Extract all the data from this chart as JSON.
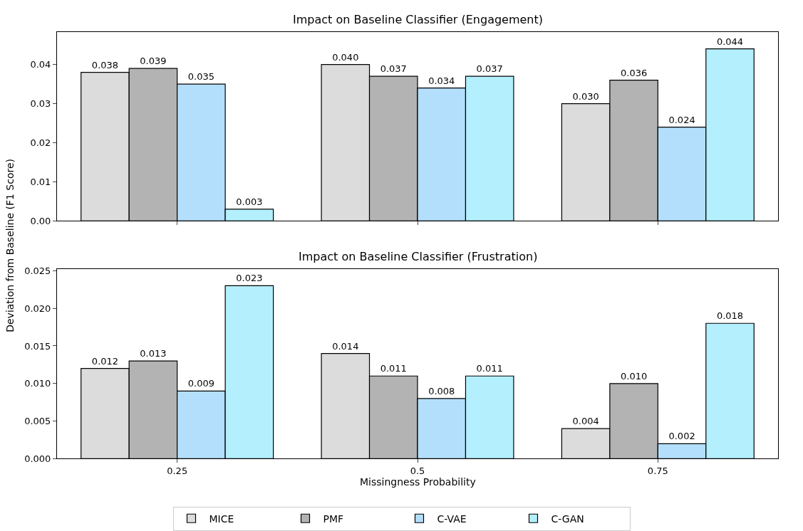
{
  "chart_data": [
    {
      "type": "bar",
      "title": "Impact on Baseline Classifier (Engagement)",
      "ylabel": "Deviation from Baseline (F1 Score)",
      "categories": [
        "0.25",
        "0.5",
        "0.75"
      ],
      "ylim": [
        0,
        0.0483
      ],
      "yticks": [
        "0.00",
        "0.01",
        "0.02",
        "0.03",
        "0.04"
      ],
      "tick_labels": "y",
      "legend": "bottom",
      "series": [
        {
          "name": "MICE",
          "color": "#dcdcdc",
          "values": [
            0.038,
            0.04,
            0.03
          ],
          "value_labels": [
            "0.038",
            "0.040",
            "0.030"
          ]
        },
        {
          "name": "PMF",
          "color": "#b3b3b3",
          "values": [
            0.039,
            0.037,
            0.036
          ],
          "value_labels": [
            "0.039",
            "0.037",
            "0.036"
          ]
        },
        {
          "name": "C-VAE",
          "color": "#b3dffc",
          "values": [
            0.035,
            0.034,
            0.024
          ],
          "value_labels": [
            "0.035",
            "0.034",
            "0.024"
          ]
        },
        {
          "name": "C-GAN",
          "color": "#b3effc",
          "values": [
            0.003,
            0.037,
            0.044
          ],
          "value_labels": [
            "0.003",
            "0.037",
            "0.044"
          ]
        }
      ]
    },
    {
      "type": "bar",
      "title": "Impact on Baseline Classifier (Frustration)",
      "xlabel": "Missingness Probability",
      "categories": [
        "0.25",
        "0.5",
        "0.75"
      ],
      "ylim": [
        0,
        0.0252
      ],
      "yticks": [
        "0.000",
        "0.005",
        "0.010",
        "0.015",
        "0.020",
        "0.025"
      ],
      "legend": "bottom",
      "series": [
        {
          "name": "MICE",
          "color": "#dcdcdc",
          "values": [
            0.012,
            0.014,
            0.004
          ],
          "value_labels": [
            "0.012",
            "0.014",
            "0.004"
          ]
        },
        {
          "name": "PMF",
          "color": "#b3b3b3",
          "values": [
            0.013,
            0.011,
            0.01
          ],
          "value_labels": [
            "0.013",
            "0.011",
            "0.010"
          ]
        },
        {
          "name": "C-VAE",
          "color": "#b3dffc",
          "values": [
            0.009,
            0.008,
            0.002
          ],
          "value_labels": [
            "0.009",
            "0.008",
            "0.002"
          ]
        },
        {
          "name": "C-GAN",
          "color": "#b3effc",
          "values": [
            0.023,
            0.011,
            0.018
          ],
          "value_labels": [
            "0.023",
            "0.011",
            "0.018"
          ]
        }
      ]
    }
  ]
}
